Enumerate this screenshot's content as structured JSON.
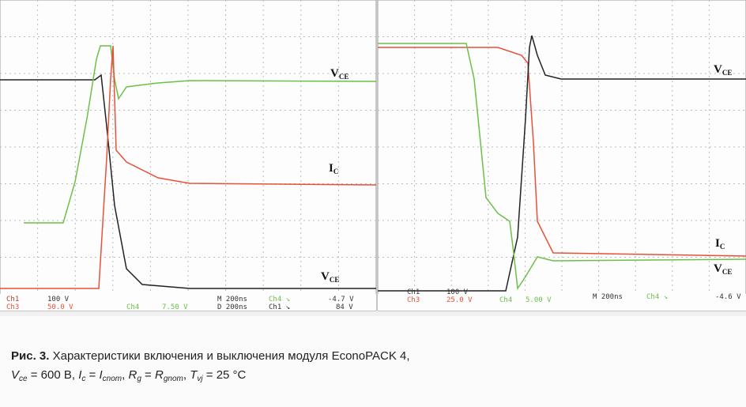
{
  "left_scope": {
    "labels": [
      {
        "main": "V",
        "sub": "CE"
      },
      {
        "main": "I",
        "sub": "C"
      },
      {
        "main": "V",
        "sub": "CE"
      }
    ],
    "status": [
      "Ch1",
      "100 V",
      "Ch3",
      "50.0 V",
      "Ch4",
      "7.50 V",
      "M 200ns",
      "Ch4 ↘",
      "-4.7 V",
      "D 200ns",
      "Ch1 ↘",
      "84 V"
    ]
  },
  "right_scope": {
    "labels": [
      {
        "main": "V",
        "sub": "CE"
      },
      {
        "main": "I",
        "sub": "C"
      },
      {
        "main": "V",
        "sub": "CE"
      }
    ],
    "status": [
      "Ch1",
      "100 V",
      "Ch3",
      "25.0 V",
      "Ch4",
      "5.00 V",
      "M 200ns",
      "Ch4 ↘",
      "-4.6 V"
    ]
  },
  "caption": {
    "label": "Рис. 3.",
    "text": "Характеристики включения и выключения модуля EconoPACK 4,",
    "line2": [
      {
        "main": "V",
        "sub": "ce"
      },
      {
        "text": " = 600 В, "
      },
      {
        "main": "I",
        "sub": "c"
      },
      {
        "text": " = "
      },
      {
        "main": "I",
        "sub": "cnom"
      },
      {
        "text": ", "
      },
      {
        "main": "R",
        "sub": "g"
      },
      {
        "text": " = "
      },
      {
        "main": "R",
        "sub": "gnom"
      },
      {
        "text": ", "
      },
      {
        "main": "T",
        "sub": "vj"
      },
      {
        "text": " = 25 °C"
      }
    ]
  }
}
